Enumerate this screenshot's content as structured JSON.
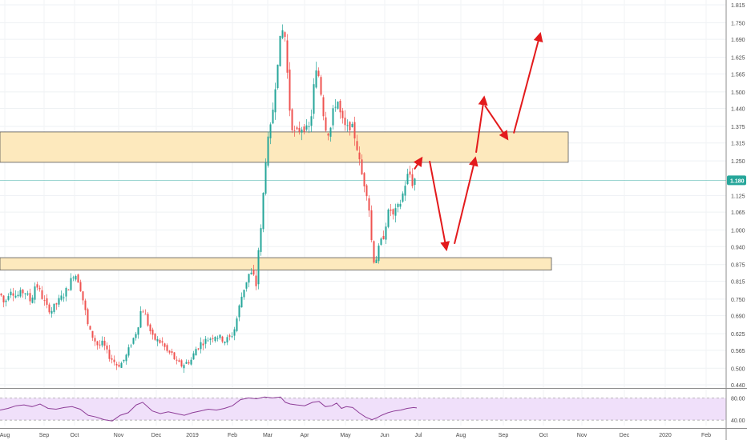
{
  "chart_data": {
    "type": "candlestick",
    "title": "",
    "xlabel": "",
    "ylabel": "",
    "ylim": [
      0.44,
      1.815
    ],
    "y_ticks": [
      "1.815",
      "1.750",
      "1.690",
      "1.625",
      "1.565",
      "1.500",
      "1.440",
      "1.375",
      "1.315",
      "1.250",
      "1.125",
      "1.065",
      "1.000",
      "0.940",
      "0.875",
      "0.815",
      "0.750",
      "0.690",
      "0.625",
      "0.565",
      "0.500",
      "0.440"
    ],
    "x_ticks": [
      "Aug",
      "Sep",
      "Oct",
      "Nov",
      "Dec",
      "2019",
      "Feb",
      "Mar",
      "Apr",
      "May",
      "Jun",
      "Jul",
      "Aug",
      "Sep",
      "Oct",
      "Nov",
      "Dec",
      "2020",
      "Feb"
    ],
    "last_price": "1.180",
    "grid": true,
    "colors": {
      "up": "#26a69a",
      "down": "#ef5350",
      "zone_fill": "#fde9bd",
      "arrow": "#e31a1c",
      "rsi_line": "#8e3e98",
      "rsi_band": "#f0e0fa",
      "price_line": "#26a69a"
    },
    "price_path": [
      [
        0,
        0.77
      ],
      [
        5,
        0.73
      ],
      [
        12,
        0.79
      ],
      [
        20,
        0.76
      ],
      [
        30,
        0.78
      ],
      [
        38,
        0.74
      ],
      [
        44,
        0.81
      ],
      [
        50,
        0.77
      ],
      [
        58,
        0.72
      ],
      [
        64,
        0.71
      ],
      [
        72,
        0.74
      ],
      [
        80,
        0.77
      ],
      [
        86,
        0.8
      ],
      [
        92,
        0.85
      ],
      [
        97,
        0.82
      ],
      [
        100,
        0.79
      ],
      [
        105,
        0.72
      ],
      [
        110,
        0.64
      ],
      [
        116,
        0.61
      ],
      [
        122,
        0.58
      ],
      [
        128,
        0.59
      ],
      [
        134,
        0.55
      ],
      [
        140,
        0.53
      ],
      [
        146,
        0.51
      ],
      [
        152,
        0.52
      ],
      [
        158,
        0.55
      ],
      [
        163,
        0.59
      ],
      [
        168,
        0.62
      ],
      [
        172,
        0.66
      ],
      [
        176,
        0.72
      ],
      [
        180,
        0.7
      ],
      [
        185,
        0.65
      ],
      [
        190,
        0.61
      ],
      [
        196,
        0.6
      ],
      [
        202,
        0.59
      ],
      [
        208,
        0.56
      ],
      [
        214,
        0.55
      ],
      [
        220,
        0.52
      ],
      [
        226,
        0.51
      ],
      [
        232,
        0.52
      ],
      [
        238,
        0.53
      ],
      [
        244,
        0.57
      ],
      [
        250,
        0.59
      ],
      [
        256,
        0.6
      ],
      [
        262,
        0.61
      ],
      [
        268,
        0.62
      ],
      [
        274,
        0.61
      ],
      [
        280,
        0.6
      ],
      [
        286,
        0.61
      ],
      [
        291,
        0.63
      ],
      [
        295,
        0.68
      ],
      [
        300,
        0.75
      ],
      [
        305,
        0.8
      ],
      [
        310,
        0.84
      ],
      [
        315,
        0.84
      ],
      [
        319,
        0.8
      ],
      [
        322,
        0.93
      ],
      [
        326,
        1.02
      ],
      [
        330,
        1.24
      ],
      [
        334,
        1.32
      ],
      [
        338,
        1.38
      ],
      [
        342,
        1.5
      ],
      [
        346,
        1.62
      ],
      [
        350,
        1.7
      ],
      [
        354,
        1.74
      ],
      [
        357,
        1.62
      ],
      [
        360,
        1.46
      ],
      [
        364,
        1.38
      ],
      [
        368,
        1.34
      ],
      [
        372,
        1.36
      ],
      [
        378,
        1.38
      ],
      [
        384,
        1.35
      ],
      [
        388,
        1.42
      ],
      [
        392,
        1.55
      ],
      [
        396,
        1.58
      ],
      [
        400,
        1.5
      ],
      [
        404,
        1.4
      ],
      [
        408,
        1.35
      ],
      [
        412,
        1.37
      ],
      [
        416,
        1.44
      ],
      [
        420,
        1.48
      ],
      [
        424,
        1.42
      ],
      [
        428,
        1.38
      ],
      [
        432,
        1.36
      ],
      [
        436,
        1.38
      ],
      [
        440,
        1.36
      ],
      [
        444,
        1.32
      ],
      [
        447,
        1.26
      ],
      [
        450,
        1.21
      ],
      [
        454,
        1.17
      ],
      [
        458,
        1.13
      ],
      [
        461,
        1.05
      ],
      [
        464,
        0.92
      ],
      [
        467,
        0.88
      ],
      [
        470,
        0.91
      ],
      [
        474,
        0.95
      ],
      [
        478,
        0.98
      ],
      [
        482,
        1.04
      ],
      [
        486,
        1.08
      ],
      [
        490,
        1.05
      ],
      [
        494,
        1.07
      ],
      [
        498,
        1.09
      ],
      [
        502,
        1.13
      ],
      [
        506,
        1.18
      ],
      [
        510,
        1.21
      ],
      [
        514,
        1.17
      ],
      [
        518,
        1.19
      ]
    ],
    "zones": [
      {
        "from_x": 0,
        "to_x": 709,
        "low": 1.245,
        "high": 1.355
      },
      {
        "from_x": 0,
        "to_x": 688,
        "low": 0.855,
        "high": 0.9
      }
    ],
    "projection": [
      [
        [
          517,
          1.22
        ],
        [
          526,
          1.26
        ]
      ],
      [
        [
          536,
          1.25
        ],
        [
          557,
          0.93
        ]
      ],
      [
        [
          567,
          0.95
        ],
        [
          593,
          1.26
        ]
      ],
      [
        [
          594,
          1.28
        ],
        [
          604,
          1.48
        ]
      ],
      [
        [
          605,
          1.45
        ],
        [
          633,
          1.33
        ]
      ],
      [
        [
          641,
          1.35
        ],
        [
          674,
          1.71
        ]
      ]
    ],
    "rsi": {
      "y_ticks": [
        "80.00",
        "40.00"
      ],
      "values": [
        [
          0,
          52
        ],
        [
          10,
          56
        ],
        [
          20,
          62
        ],
        [
          30,
          64
        ],
        [
          40,
          60
        ],
        [
          50,
          66
        ],
        [
          60,
          56
        ],
        [
          70,
          54
        ],
        [
          80,
          58
        ],
        [
          90,
          60
        ],
        [
          100,
          54
        ],
        [
          110,
          40
        ],
        [
          120,
          36
        ],
        [
          130,
          30
        ],
        [
          140,
          27
        ],
        [
          150,
          40
        ],
        [
          160,
          46
        ],
        [
          170,
          64
        ],
        [
          178,
          70
        ],
        [
          184,
          60
        ],
        [
          190,
          50
        ],
        [
          200,
          44
        ],
        [
          210,
          48
        ],
        [
          220,
          44
        ],
        [
          230,
          40
        ],
        [
          240,
          46
        ],
        [
          250,
          50
        ],
        [
          260,
          54
        ],
        [
          270,
          52
        ],
        [
          280,
          56
        ],
        [
          290,
          62
        ],
        [
          300,
          76
        ],
        [
          310,
          80
        ],
        [
          320,
          78
        ],
        [
          330,
          82
        ],
        [
          340,
          80
        ],
        [
          350,
          82
        ],
        [
          356,
          70
        ],
        [
          362,
          66
        ],
        [
          370,
          64
        ],
        [
          380,
          62
        ],
        [
          390,
          70
        ],
        [
          398,
          72
        ],
        [
          406,
          60
        ],
        [
          414,
          62
        ],
        [
          420,
          68
        ],
        [
          426,
          56
        ],
        [
          432,
          60
        ],
        [
          440,
          58
        ],
        [
          448,
          46
        ],
        [
          456,
          36
        ],
        [
          464,
          30
        ],
        [
          470,
          34
        ],
        [
          476,
          40
        ],
        [
          484,
          46
        ],
        [
          492,
          50
        ],
        [
          500,
          52
        ],
        [
          508,
          56
        ],
        [
          516,
          58
        ],
        [
          520,
          57
        ]
      ]
    }
  }
}
